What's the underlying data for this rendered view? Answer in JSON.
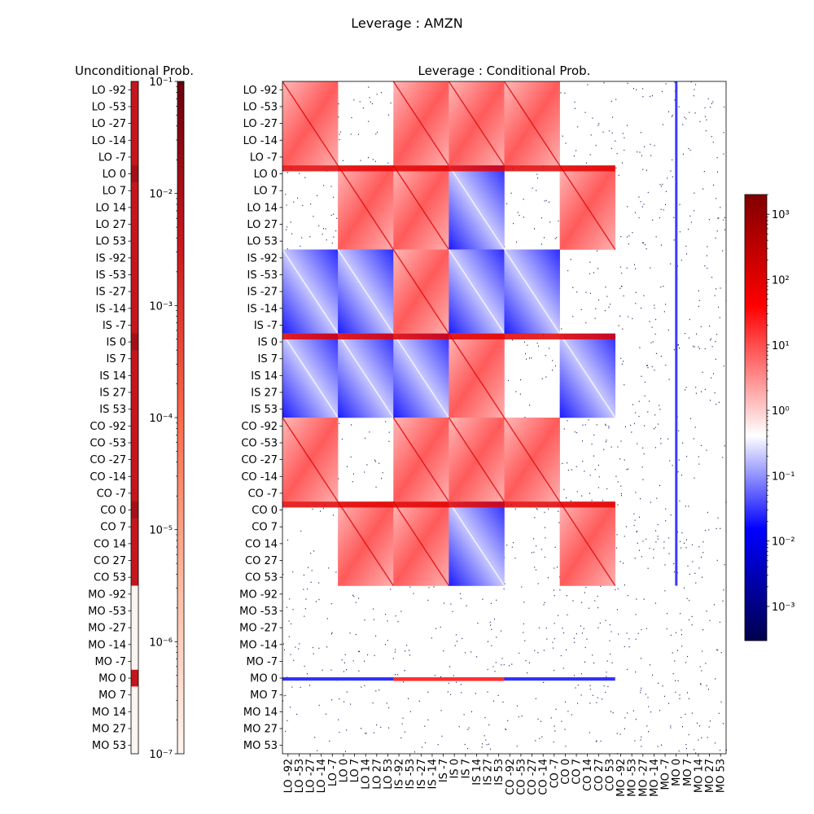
{
  "figure": {
    "suptitle": "Leverage : AMZN"
  },
  "chart_data": [
    {
      "type": "heatmap",
      "title": "Unconditional Prob.",
      "ylabels": [
        "LO -92",
        "LO -53",
        "LO -27",
        "LO -14",
        "LO -7",
        "LO 0",
        "LO 7",
        "LO 14",
        "LO 27",
        "LO 53",
        "IS -92",
        "IS -53",
        "IS -27",
        "IS -14",
        "IS -7",
        "IS 0",
        "IS 7",
        "IS 14",
        "IS 27",
        "IS 53",
        "CO -92",
        "CO -53",
        "CO -27",
        "CO -14",
        "CO -7",
        "CO 0",
        "CO 7",
        "CO 14",
        "CO 27",
        "CO 53",
        "MO -92",
        "MO -53",
        "MO -27",
        "MO -14",
        "MO -7",
        "MO 0",
        "MO 7",
        "MO 14",
        "MO 27",
        "MO 53"
      ],
      "values": [
        0.004,
        0.004,
        0.004,
        0.004,
        0.004,
        0.012,
        0.004,
        0.004,
        0.004,
        0.004,
        0.004,
        0.004,
        0.004,
        0.004,
        0.004,
        0.012,
        0.004,
        0.004,
        0.004,
        0.004,
        0.004,
        0.004,
        0.004,
        0.004,
        0.004,
        0.012,
        0.004,
        0.004,
        0.004,
        0.004,
        1e-07,
        1e-07,
        1e-07,
        1e-07,
        1e-07,
        0.004,
        1e-07,
        1e-07,
        1e-07,
        1e-07
      ],
      "colorbar": {
        "scale": "log",
        "range": [
          1e-07,
          0.1
        ],
        "ticks": [
          "10⁻⁷",
          "10⁻⁶",
          "10⁻⁵",
          "10⁻⁴",
          "10⁻³",
          "10⁻²",
          "10⁻¹"
        ],
        "colormap": "Reds"
      }
    },
    {
      "type": "heatmap",
      "title": "Leverage : Conditional Prob.",
      "labels": [
        "LO -92",
        "LO -53",
        "LO -27",
        "LO -14",
        "LO -7",
        "LO 0",
        "LO 7",
        "LO 14",
        "LO 27",
        "LO 53",
        "IS -92",
        "IS -53",
        "IS -27",
        "IS -14",
        "IS -7",
        "IS 0",
        "IS 7",
        "IS 14",
        "IS 27",
        "IS 53",
        "CO -92",
        "CO -53",
        "CO -27",
        "CO -14",
        "CO -7",
        "CO 0",
        "CO 7",
        "CO 14",
        "CO 27",
        "CO 53",
        "MO -92",
        "MO -53",
        "MO -27",
        "MO -14",
        "MO -7",
        "MO 0",
        "MO 7",
        "MO 14",
        "MO 27",
        "MO 53"
      ],
      "block_groups": [
        "LO-",
        "LO+",
        "IS-",
        "IS+",
        "CO-",
        "CO+",
        "MO-",
        "MO+"
      ],
      "block_pattern": [
        [
          "red",
          "empty",
          "red",
          "red",
          "red",
          "empty",
          "empty",
          "empty"
        ],
        [
          "empty",
          "red",
          "red",
          "blue",
          "empty",
          "red",
          "empty",
          "empty"
        ],
        [
          "blue",
          "blue",
          "red",
          "blue",
          "blue",
          "empty",
          "empty",
          "empty"
        ],
        [
          "blue",
          "blue",
          "blue",
          "red",
          "empty",
          "blue",
          "empty",
          "empty"
        ],
        [
          "red",
          "empty",
          "red",
          "red",
          "red",
          "empty",
          "empty",
          "empty"
        ],
        [
          "empty",
          "red",
          "red",
          "blue",
          "empty",
          "red",
          "empty",
          "empty"
        ],
        [
          "empty",
          "empty",
          "empty",
          "empty",
          "empty",
          "empty",
          "empty",
          "empty"
        ],
        [
          "empty",
          "empty",
          "empty",
          "empty",
          "empty",
          "empty",
          "empty",
          "empty"
        ]
      ],
      "colorbar": {
        "scale": "log",
        "range": [
          0.0003,
          2000
        ],
        "ticks": [
          "10⁻³",
          "10⁻²",
          "10⁻¹",
          "10⁰",
          "10¹",
          "10²",
          "10³"
        ],
        "colormap": "seismic"
      }
    }
  ]
}
